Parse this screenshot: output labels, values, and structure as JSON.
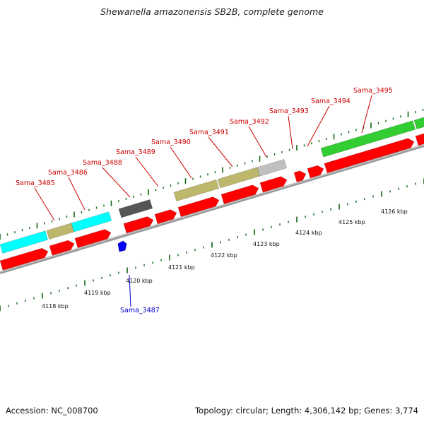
{
  "title": "Shewanella amazonensis SB2B, complete genome",
  "footer": {
    "accession": "Accession: NC_008700",
    "info": "Topology: circular; Length: 4,306,142 bp; Genes: 3,774"
  },
  "colors": {
    "cds_forward": "#ff0000",
    "cds_reverse": "#0000ff",
    "label_forward": "#cc0000",
    "label_reverse": "#0000cc",
    "backbone": "#999999",
    "tick": "#116611",
    "cog_cyan": "#00ffff",
    "cog_khaki": "#bdb76b",
    "cog_darkgray": "#555555",
    "cog_lightgray": "#c0c0c0",
    "cog_green": "#32cd32"
  },
  "gene_labels": [
    {
      "name": "Sama_3485",
      "strand": "forward"
    },
    {
      "name": "Sama_3486",
      "strand": "forward"
    },
    {
      "name": "Sama_3488",
      "strand": "forward"
    },
    {
      "name": "Sama_3489",
      "strand": "forward"
    },
    {
      "name": "Sama_3490",
      "strand": "forward"
    },
    {
      "name": "Sama_3491",
      "strand": "forward"
    },
    {
      "name": "Sama_3492",
      "strand": "forward"
    },
    {
      "name": "Sama_3493",
      "strand": "forward"
    },
    {
      "name": "Sama_3494",
      "strand": "forward"
    },
    {
      "name": "Sama_3495",
      "strand": "forward"
    },
    {
      "name": "Sama_3487",
      "strand": "reverse"
    }
  ],
  "kbp_labels": [
    "4118 kbp",
    "4119 kbp",
    "4120 kbp",
    "4121 kbp",
    "4122 kbp",
    "4123 kbp",
    "4124 kbp",
    "4125 kbp",
    "4126 kbp"
  ]
}
